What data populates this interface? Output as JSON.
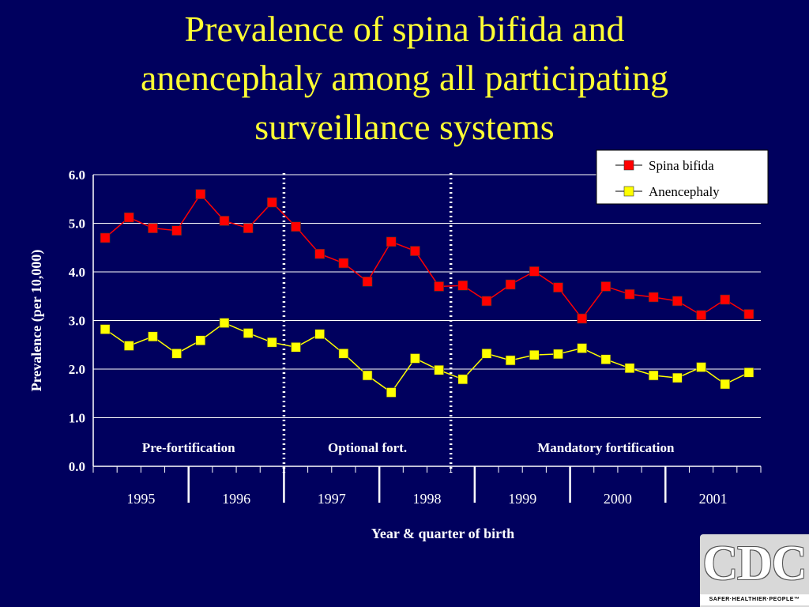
{
  "slide": {
    "title_lines": [
      "Prevalence of spina bifida and",
      "anencephaly among all participating",
      "surveillance systems"
    ]
  },
  "logo": {
    "text": "CDC",
    "tagline": "SAFER·HEALTHIER·PEOPLE™"
  },
  "chart_data": {
    "type": "line",
    "ylabel": "Prevalence (per 10,000)",
    "xlabel": "Year & quarter of birth",
    "ylim": [
      0,
      6
    ],
    "yticks": [
      "0.0",
      "1.0",
      "2.0",
      "3.0",
      "4.0",
      "5.0",
      "6.0"
    ],
    "grid": true,
    "legend_position": "top-right",
    "years": [
      "1995",
      "1996",
      "1997",
      "1998",
      "1999",
      "2000",
      "2001"
    ],
    "quarters_per_year": 4,
    "series": [
      {
        "name": "Spina bifida",
        "color": "#ff0000",
        "values": [
          4.7,
          5.12,
          4.9,
          4.85,
          5.6,
          5.05,
          4.9,
          5.43,
          4.93,
          4.37,
          4.18,
          3.8,
          4.62,
          4.43,
          3.7,
          3.72,
          3.4,
          3.74,
          4.01,
          3.68,
          3.04,
          3.7,
          3.54,
          3.48,
          3.4,
          3.11,
          3.43,
          3.13
        ]
      },
      {
        "name": "Anencephaly",
        "color": "#ffff00",
        "values": [
          2.82,
          2.48,
          2.67,
          2.32,
          2.59,
          2.95,
          2.74,
          2.55,
          2.45,
          2.72,
          2.32,
          1.87,
          1.52,
          2.22,
          1.98,
          1.79,
          2.32,
          2.18,
          2.29,
          2.31,
          2.43,
          2.2,
          2.02,
          1.87,
          1.82,
          2.04,
          1.69,
          1.93
        ]
      }
    ],
    "period_dividers_after_quarter": [
      8,
      15
    ],
    "periods": [
      "Pre-fortification",
      "Optional fort.",
      "Mandatory fortification"
    ]
  }
}
